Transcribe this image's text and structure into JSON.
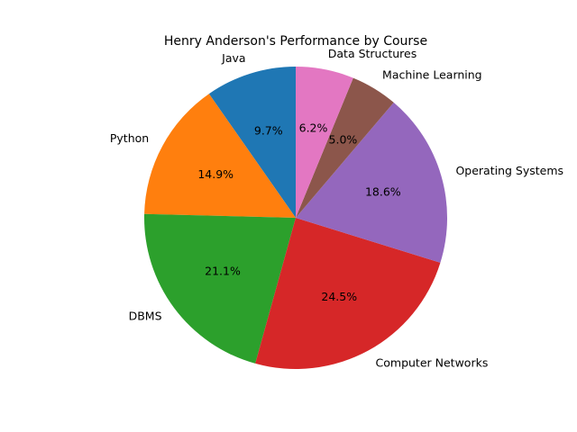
{
  "chart_data": {
    "type": "pie",
    "title": "Henry Anderson's Performance by Course",
    "start_angle_deg": 90,
    "direction": "counterclockwise",
    "slices": [
      {
        "label": "Java",
        "value": 9.7,
        "pct_text": "9.7%",
        "color": "#1f77b4"
      },
      {
        "label": "Python",
        "value": 14.9,
        "pct_text": "14.9%",
        "color": "#ff7f0e"
      },
      {
        "label": "DBMS",
        "value": 21.1,
        "pct_text": "21.1%",
        "color": "#2ca02c"
      },
      {
        "label": "Computer Networks",
        "value": 24.5,
        "pct_text": "24.5%",
        "color": "#d62728"
      },
      {
        "label": "Operating Systems",
        "value": 18.6,
        "pct_text": "18.6%",
        "color": "#9467bd"
      },
      {
        "label": "Machine Learning",
        "value": 5.0,
        "pct_text": "5.0%",
        "color": "#8c564b"
      },
      {
        "label": "Data Structures",
        "value": 6.2,
        "pct_text": "6.2%",
        "color": "#e377c2"
      }
    ]
  }
}
